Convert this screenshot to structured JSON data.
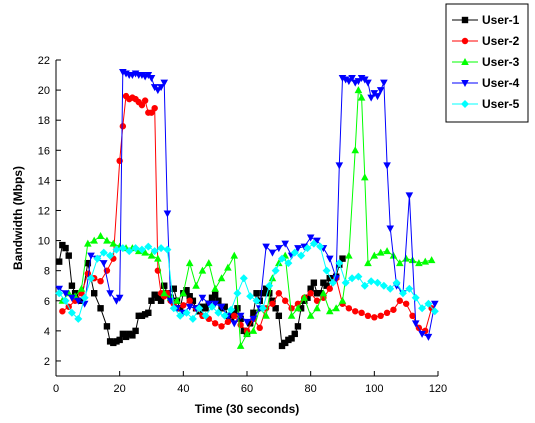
{
  "chart_data": {
    "type": "line",
    "title": "",
    "xlabel": "Time (30 seconds)",
    "ylabel": "Bandwidth (Mbps)",
    "xlim": [
      0,
      120
    ],
    "ylim": [
      1,
      22
    ],
    "xticks": [
      0,
      20,
      40,
      60,
      80,
      100,
      120
    ],
    "yticks": [
      2,
      4,
      6,
      8,
      10,
      12,
      14,
      16,
      18,
      20,
      22
    ],
    "grid": false,
    "legend_position": "top-right",
    "series": [
      {
        "name": "User-1",
        "color": "#000000",
        "marker": "square",
        "x": [
          1,
          2,
          3,
          4,
          5,
          6,
          8,
          10,
          12,
          14,
          16,
          17,
          18,
          19,
          20,
          21,
          22,
          23,
          24,
          25,
          26,
          27,
          28,
          29,
          30,
          31,
          32,
          33,
          34,
          35,
          36,
          37,
          38,
          39,
          40,
          41,
          42,
          43,
          44,
          45,
          46,
          47,
          48,
          49,
          50,
          51,
          52,
          53,
          54,
          55,
          56,
          57,
          58,
          59,
          60,
          61,
          62,
          63,
          64,
          65,
          66,
          67,
          68,
          69,
          70,
          71,
          72,
          73,
          74,
          75,
          76,
          77,
          78,
          79,
          80,
          81,
          82,
          83,
          84,
          85,
          86,
          87,
          88,
          89,
          90
        ],
        "y": [
          8.6,
          9.7,
          9.5,
          9.0,
          7.0,
          6.5,
          6.0,
          8.5,
          6.5,
          5.5,
          4.3,
          3.3,
          3.2,
          3.3,
          3.4,
          3.8,
          3.6,
          3.8,
          3.7,
          4.0,
          5.0,
          5.0,
          5.1,
          5.2,
          6.0,
          6.4,
          6.2,
          6.0,
          7.0,
          6.5,
          6.2,
          6.8,
          6.0,
          5.5,
          6.5,
          6.7,
          6.3,
          6.0,
          5.5,
          5.3,
          5.6,
          5.5,
          5.8,
          6.2,
          6.4,
          6.0,
          5.5,
          5.6,
          5.0,
          4.8,
          5.2,
          5.5,
          4.8,
          4.0,
          3.8,
          4.5,
          5.2,
          6.5,
          6.0,
          6.5,
          6.8,
          6.5,
          6.0,
          5.5,
          5.0,
          3.0,
          3.2,
          3.4,
          3.5,
          3.8,
          4.3,
          5.5,
          6.0,
          6.2,
          6.8,
          7.2,
          6.5,
          6.5,
          7.2,
          7.0,
          7.5,
          7.5,
          7.6,
          8.4,
          8.8
        ]
      },
      {
        "name": "User-2",
        "color": "#ff0000",
        "marker": "circle",
        "x": [
          2,
          4,
          6,
          8,
          10,
          12,
          14,
          16,
          18,
          20,
          21,
          22,
          23,
          24,
          25,
          26,
          27,
          28,
          29,
          30,
          31,
          32,
          33,
          34,
          35,
          36,
          37,
          38,
          40,
          42,
          44,
          46,
          48,
          50,
          52,
          54,
          56,
          58,
          60,
          62,
          64,
          66,
          68,
          70,
          72,
          74,
          76,
          78,
          80,
          82,
          84,
          86,
          88,
          90,
          92,
          94,
          96,
          98,
          100,
          102,
          104,
          106,
          108,
          110,
          112,
          114,
          116,
          118
        ],
        "y": [
          5.3,
          5.6,
          6.0,
          6.5,
          7.8,
          7.5,
          7.3,
          8.0,
          8.8,
          15.3,
          17.6,
          19.6,
          19.4,
          19.5,
          19.4,
          19.2,
          19.0,
          19.3,
          18.5,
          18.5,
          18.8,
          8.0,
          6.5,
          6.3,
          6.5,
          6.0,
          5.8,
          5.5,
          5.7,
          6.0,
          5.5,
          5.0,
          4.8,
          4.5,
          4.3,
          4.6,
          5.0,
          4.4,
          4.0,
          4.8,
          4.2,
          5.5,
          5.8,
          6.5,
          6.0,
          5.5,
          5.8,
          6.2,
          6.5,
          6.0,
          6.2,
          6.8,
          7.5,
          5.8,
          5.5,
          5.3,
          5.2,
          5.0,
          4.9,
          5.0,
          5.2,
          5.4,
          6.0,
          5.8,
          5.0,
          4.2,
          4.0,
          5.5
        ]
      },
      {
        "name": "User-3",
        "color": "#00ff00",
        "marker": "triangle-up",
        "x": [
          2,
          4,
          6,
          8,
          10,
          12,
          14,
          16,
          18,
          20,
          22,
          24,
          26,
          28,
          30,
          32,
          34,
          36,
          38,
          40,
          42,
          44,
          46,
          48,
          50,
          52,
          54,
          56,
          58,
          60,
          62,
          64,
          66,
          68,
          70,
          72,
          74,
          76,
          78,
          80,
          82,
          84,
          86,
          88,
          90,
          92,
          94,
          95,
          96,
          97,
          98,
          100,
          102,
          104,
          106,
          108,
          110,
          112,
          114,
          116,
          118
        ],
        "y": [
          6.0,
          6.5,
          6.3,
          6.8,
          9.8,
          10.0,
          10.3,
          10.0,
          9.8,
          9.6,
          9.5,
          9.5,
          9.3,
          9.2,
          9.0,
          8.8,
          6.5,
          6.2,
          6.0,
          6.5,
          8.5,
          7.0,
          8.0,
          8.5,
          6.8,
          7.5,
          8.2,
          9.0,
          3.0,
          3.8,
          4.0,
          5.5,
          5.0,
          7.5,
          8.5,
          9.0,
          5.0,
          5.5,
          6.2,
          5.0,
          5.5,
          6.5,
          5.3,
          5.5,
          6.0,
          9.0,
          16.0,
          20.0,
          19.5,
          14.2,
          8.5,
          9.0,
          9.2,
          9.3,
          9.0,
          8.5,
          8.8,
          8.7,
          8.5,
          8.6,
          8.7
        ]
      },
      {
        "name": "User-4",
        "color": "#0000ff",
        "marker": "triangle-down",
        "x": [
          1,
          3,
          5,
          7,
          9,
          11,
          13,
          15,
          17,
          19,
          20,
          21,
          22,
          23,
          24,
          25,
          26,
          27,
          28,
          29,
          30,
          31,
          32,
          33,
          34,
          35,
          36,
          38,
          40,
          42,
          44,
          46,
          48,
          50,
          52,
          54,
          56,
          58,
          60,
          62,
          64,
          66,
          68,
          70,
          72,
          74,
          76,
          78,
          80,
          82,
          84,
          86,
          88,
          89,
          90,
          91,
          92,
          93,
          94,
          95,
          96,
          97,
          98,
          99,
          100,
          101,
          102,
          103,
          104,
          105,
          107,
          109,
          111,
          113,
          115,
          117,
          119
        ],
        "y": [
          6.8,
          6.5,
          6.2,
          6.0,
          5.8,
          9.0,
          8.8,
          8.5,
          6.5,
          6.0,
          6.2,
          21.2,
          21.1,
          21.0,
          21.0,
          21.1,
          21.0,
          21.0,
          20.9,
          21.0,
          20.8,
          20.2,
          20.0,
          20.2,
          20.5,
          11.8,
          6.0,
          5.5,
          5.2,
          5.6,
          5.5,
          6.2,
          5.8,
          5.8,
          5.6,
          5.0,
          4.5,
          5.0,
          4.6,
          4.8,
          5.5,
          9.6,
          9.2,
          9.5,
          9.8,
          9.0,
          9.5,
          9.6,
          10.2,
          10.0,
          9.5,
          8.8,
          7.5,
          15.0,
          20.8,
          20.7,
          20.6,
          20.8,
          20.5,
          20.6,
          20.8,
          20.7,
          20.5,
          19.5,
          19.8,
          19.6,
          20.0,
          20.5,
          15.0,
          10.8,
          7.0,
          6.5,
          13.0,
          4.5,
          3.8,
          3.6,
          5.8
        ]
      },
      {
        "name": "User-5",
        "color": "#00ffff",
        "marker": "diamond",
        "x": [
          1,
          3,
          5,
          7,
          9,
          11,
          13,
          15,
          17,
          19,
          21,
          23,
          25,
          27,
          29,
          31,
          33,
          35,
          37,
          39,
          41,
          43,
          45,
          47,
          49,
          51,
          53,
          55,
          57,
          59,
          61,
          63,
          65,
          67,
          69,
          71,
          73,
          75,
          77,
          79,
          81,
          83,
          85,
          87,
          89,
          91,
          93,
          95,
          97,
          99,
          101,
          103,
          105,
          107,
          109,
          111,
          113,
          115,
          117,
          119
        ],
        "y": [
          6.5,
          6.0,
          5.2,
          4.8,
          6.2,
          7.5,
          8.8,
          9.2,
          9.0,
          9.4,
          9.5,
          9.3,
          9.5,
          9.4,
          9.6,
          9.3,
          9.5,
          9.4,
          5.5,
          5.0,
          5.2,
          4.8,
          5.5,
          5.0,
          5.6,
          5.2,
          5.0,
          5.4,
          6.5,
          7.5,
          6.3,
          6.0,
          5.5,
          7.0,
          8.0,
          8.8,
          8.5,
          9.2,
          9.0,
          9.5,
          9.8,
          9.6,
          8.0,
          7.2,
          8.5,
          7.2,
          7.5,
          7.6,
          7.0,
          7.3,
          7.2,
          7.0,
          6.8,
          7.2,
          6.5,
          6.8,
          6.2,
          5.5,
          5.8,
          5.3
        ]
      }
    ]
  }
}
